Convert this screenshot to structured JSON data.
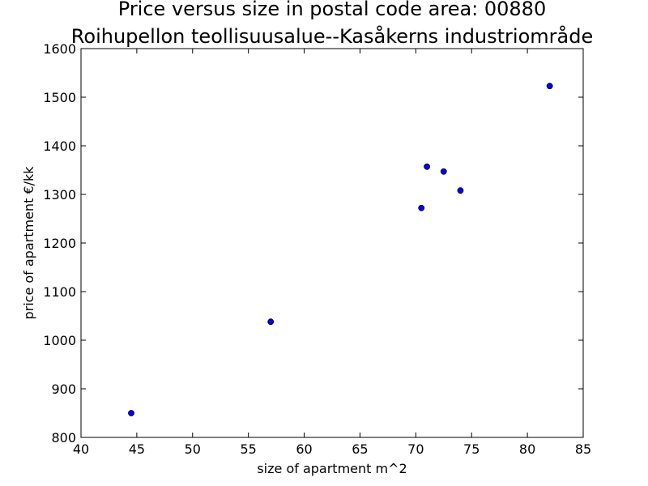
{
  "chart_data": {
    "type": "scatter",
    "title": "Price versus size in postal code area: 00880",
    "subtitle": "Roihupellon teollisuusalue--Kasåkerns industriområde",
    "xlabel": "size of apartment m^2",
    "ylabel": "price of apartment €/kk",
    "xlim": [
      40,
      85
    ],
    "ylim": [
      800,
      1600
    ],
    "xticks": [
      40,
      45,
      50,
      55,
      60,
      65,
      70,
      75,
      80,
      85
    ],
    "yticks": [
      800,
      900,
      1000,
      1100,
      1200,
      1300,
      1400,
      1500,
      1600
    ],
    "grid": false,
    "point_color": "#0000ff",
    "points": [
      {
        "x": 44.5,
        "y": 850
      },
      {
        "x": 57.0,
        "y": 1038
      },
      {
        "x": 70.5,
        "y": 1272
      },
      {
        "x": 71.0,
        "y": 1357
      },
      {
        "x": 72.5,
        "y": 1347
      },
      {
        "x": 74.0,
        "y": 1308
      },
      {
        "x": 82.0,
        "y": 1523
      }
    ]
  }
}
